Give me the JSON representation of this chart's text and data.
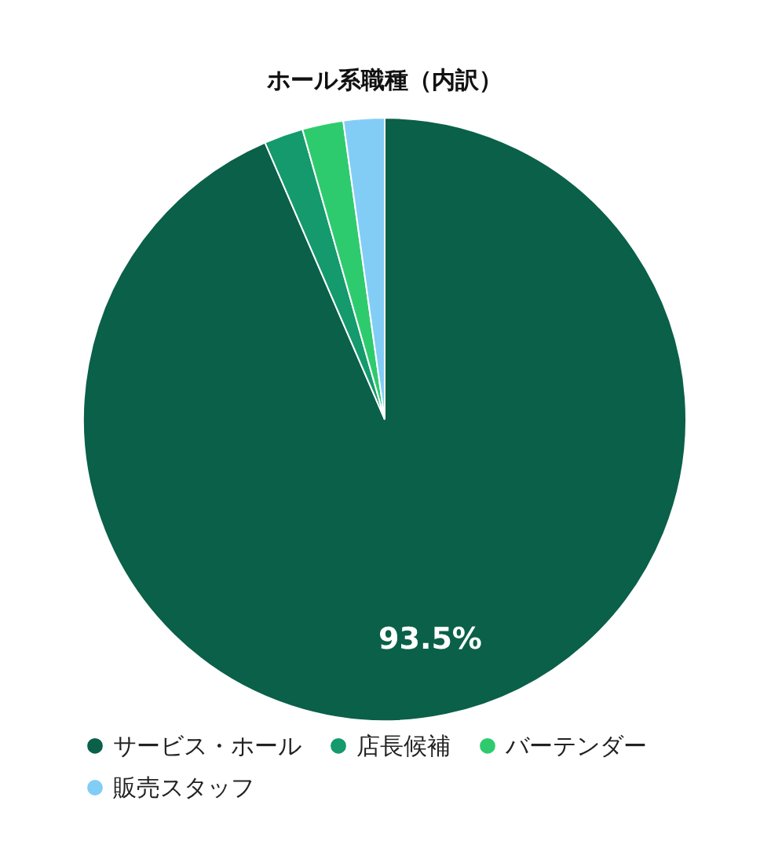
{
  "chart_data": {
    "type": "pie",
    "title": "ホール系職種（内訳）",
    "categories": [
      "サービス・ホール",
      "店長候補",
      "バーテンダー",
      "販売スタッフ"
    ],
    "values": [
      93.5,
      2.1,
      2.2,
      2.2
    ],
    "colors": [
      "#0a6048",
      "#149a6c",
      "#2ecb6e",
      "#82cdf6"
    ],
    "value_labels": [
      "93.5%",
      null,
      null,
      null
    ],
    "legend": "bottom"
  }
}
